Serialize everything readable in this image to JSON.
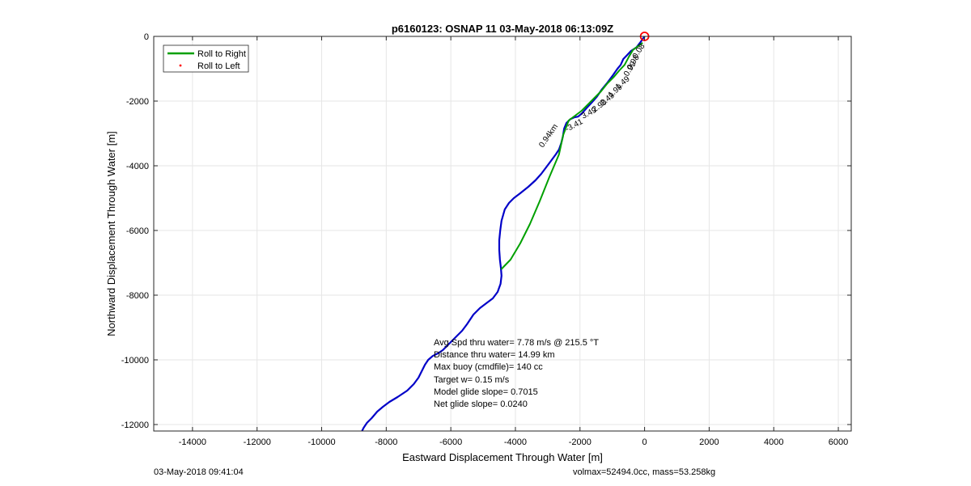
{
  "chart_data": {
    "type": "line",
    "title": "p6160123: OSNAP 11 03-May-2018 06:13:09Z",
    "xlabel": "Eastward Displacement Through Water [m]",
    "ylabel": "Northward Displacement Through Water [m]",
    "xlim": [
      -15200,
      6400
    ],
    "ylim": [
      -12200,
      0
    ],
    "xticks": [
      -14000,
      -12000,
      -10000,
      -8000,
      -6000,
      -4000,
      -2000,
      0,
      2000,
      4000,
      6000
    ],
    "xtick_labels": [
      "-14000",
      "-12000",
      "-10000",
      "-8000",
      "-6000",
      "-4000",
      "-2000",
      "0",
      "2000",
      "4000",
      "6000"
    ],
    "yticks": [
      0,
      -2000,
      -4000,
      -6000,
      -8000,
      -10000,
      -12000
    ],
    "ytick_labels": [
      "0",
      "-2000",
      "-4000",
      "-6000",
      "-8000",
      "-10000",
      "-12000"
    ],
    "grid": true,
    "legend_placement": "top-left",
    "legend": [
      {
        "name": "Roll to Right",
        "style": "line",
        "color": "#00a000"
      },
      {
        "name": "Roll to Left",
        "style": "dot",
        "color": "#ff0000"
      }
    ],
    "series": [
      {
        "style": "line",
        "color": "#0000c8",
        "x": [
          0,
          -120,
          -250,
          -420,
          -560,
          -660,
          -740,
          -840,
          -980,
          -1150,
          -1330,
          -1480,
          -1640,
          -1800,
          -1940,
          -2060,
          -2170,
          -2300,
          -2420,
          -2490,
          -2530,
          -2580,
          -2650,
          -2750,
          -2900,
          -3050,
          -3200,
          -3380,
          -3600,
          -3850,
          -4050,
          -4200,
          -4330,
          -4430,
          -4470,
          -4500,
          -4500,
          -4480,
          -4450,
          -4430,
          -4460,
          -4550,
          -4700,
          -4900,
          -5100,
          -5300,
          -5500,
          -5650,
          -5800,
          -5950,
          -6100,
          -6250,
          -6400,
          -6560,
          -6700,
          -6800,
          -6900,
          -7000,
          -7150,
          -7350,
          -7650,
          -7900,
          -8100,
          -8280,
          -8450,
          -8600,
          -8700,
          -8750
        ],
        "y": [
          0,
          -170,
          -340,
          -450,
          -600,
          -700,
          -880,
          -1000,
          -1200,
          -1430,
          -1650,
          -1870,
          -2050,
          -2220,
          -2380,
          -2480,
          -2500,
          -2560,
          -2680,
          -2850,
          -3100,
          -3300,
          -3500,
          -3650,
          -3850,
          -4050,
          -4250,
          -4450,
          -4650,
          -4850,
          -5000,
          -5150,
          -5350,
          -5700,
          -6000,
          -6300,
          -6600,
          -6900,
          -7150,
          -7400,
          -7650,
          -7900,
          -8100,
          -8250,
          -8400,
          -8600,
          -8900,
          -9100,
          -9250,
          -9400,
          -9550,
          -9700,
          -9800,
          -9880,
          -10000,
          -10150,
          -10350,
          -10550,
          -10750,
          -10950,
          -11150,
          -11300,
          -11450,
          -11600,
          -11800,
          -11950,
          -12100,
          -12200
        ]
      },
      {
        "style": "line",
        "color": "#00a000",
        "x": [
          -60,
          -200,
          -360,
          -480,
          -620,
          -780,
          -950,
          -1150,
          -1350,
          -1550,
          -1750,
          -1950,
          -2150,
          -2350,
          -2520,
          -2650,
          -2950,
          -3250,
          -3550,
          -3850,
          -4150,
          -4440
        ],
        "y": [
          -200,
          -300,
          -420,
          -620,
          -880,
          -1050,
          -1250,
          -1450,
          -1700,
          -1900,
          -2100,
          -2300,
          -2450,
          -2600,
          -3050,
          -3650,
          -4350,
          -5100,
          -5800,
          -6400,
          -6900,
          -7200
        ]
      }
    ],
    "start_marker": {
      "x": 0,
      "y": 0,
      "color": "#ff0000",
      "shape": "circle"
    },
    "annotations": [
      {
        "text": "0.08",
        "x": -250,
        "y": -700,
        "angle": -58
      },
      {
        "text": "0.98",
        "x": -420,
        "y": -1050,
        "angle": -58
      },
      {
        "text": "0.99",
        "x": -520,
        "y": -1250,
        "angle": -58
      },
      {
        "text": "1.49",
        "x": -820,
        "y": -1650,
        "angle": -40
      },
      {
        "text": "1.99",
        "x": -1050,
        "y": -1900,
        "angle": -40
      },
      {
        "text": "2.49",
        "x": -1300,
        "y": -2150,
        "angle": -38
      },
      {
        "text": "2.99",
        "x": -1550,
        "y": -2350,
        "angle": -36
      },
      {
        "text": "3.49",
        "x": -1900,
        "y": -2550,
        "angle": -28
      },
      {
        "text": "-3.41",
        "x": -2400,
        "y": -2950,
        "angle": -28
      },
      {
        "text": "0.94km",
        "x": -3150,
        "y": -3450,
        "angle": -55
      }
    ],
    "textbox": [
      "Avg Spd thru water=  7.78 m/s @ 215.5 °T",
      "Distance thru water= 14.99 km",
      "Max buoy (cmdfile)= 140 cc",
      "Target w= 0.15 m/s",
      "Model glide slope= 0.7015",
      "Net glide slope= 0.0240"
    ]
  },
  "footer": {
    "left": "03-May-2018 09:41:04",
    "right": "volmax=52494.0cc, mass=53.258kg"
  }
}
